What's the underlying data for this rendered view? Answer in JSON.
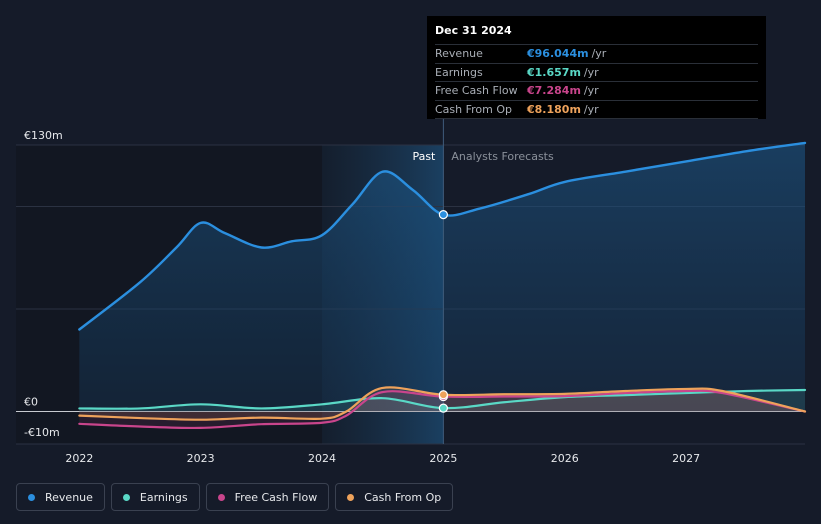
{
  "chart_data": {
    "type": "line",
    "title": "",
    "xlabel": "",
    "ylabel": "",
    "y_unit": "€",
    "ylim": [
      -10,
      130
    ],
    "y_ticks": [
      {
        "value": 130,
        "label": "€130m"
      },
      {
        "value": 0,
        "label": "€0"
      },
      {
        "value": -10,
        "label": "-€10m"
      }
    ],
    "x_ticks": [
      {
        "value": 2022,
        "label": "2022"
      },
      {
        "value": 2023,
        "label": "2023"
      },
      {
        "value": 2024,
        "label": "2024"
      },
      {
        "value": 2025,
        "label": "2025"
      },
      {
        "value": 2026,
        "label": "2026"
      },
      {
        "value": 2027,
        "label": "2027"
      }
    ],
    "xlim": [
      2021.75,
      2027.98
    ],
    "divider_x": 2025.0,
    "past_label": "Past",
    "forecast_label": "Analysts Forecasts",
    "series": [
      {
        "name": "Revenue",
        "color": "#2b8fdf",
        "fill": true,
        "points": [
          [
            2022.0,
            40
          ],
          [
            2022.5,
            63
          ],
          [
            2022.8,
            80
          ],
          [
            2023.0,
            92
          ],
          [
            2023.2,
            87
          ],
          [
            2023.5,
            80
          ],
          [
            2023.75,
            83
          ],
          [
            2024.0,
            86
          ],
          [
            2024.25,
            101
          ],
          [
            2024.5,
            117
          ],
          [
            2024.75,
            108
          ],
          [
            2025.0,
            96
          ],
          [
            2025.3,
            99
          ],
          [
            2025.7,
            106
          ],
          [
            2026.0,
            112
          ],
          [
            2026.5,
            117
          ],
          [
            2027.0,
            122
          ],
          [
            2027.5,
            127
          ],
          [
            2027.98,
            131
          ]
        ],
        "highlight": {
          "x": 2025.0,
          "y": 96.044
        }
      },
      {
        "name": "Earnings",
        "color": "#5ad8c6",
        "fill": false,
        "points": [
          [
            2022.0,
            1.5
          ],
          [
            2022.5,
            1.5
          ],
          [
            2023.0,
            3.5
          ],
          [
            2023.5,
            1.5
          ],
          [
            2024.0,
            3.5
          ],
          [
            2024.5,
            6.5
          ],
          [
            2025.0,
            1.66
          ],
          [
            2025.5,
            4.5
          ],
          [
            2026.0,
            7.0
          ],
          [
            2026.5,
            8.0
          ],
          [
            2027.0,
            9.0
          ],
          [
            2027.5,
            10.0
          ],
          [
            2027.98,
            10.5
          ]
        ],
        "highlight": {
          "x": 2025.0,
          "y": 1.657
        }
      },
      {
        "name": "Free Cash Flow",
        "color": "#c9458c",
        "fill": false,
        "points": [
          [
            2022.0,
            -6
          ],
          [
            2022.5,
            -7.3
          ],
          [
            2023.0,
            -8
          ],
          [
            2023.5,
            -6.2
          ],
          [
            2024.0,
            -5.5
          ],
          [
            2024.2,
            -2
          ],
          [
            2024.5,
            9.5
          ],
          [
            2025.0,
            7.28
          ],
          [
            2025.5,
            7.3
          ],
          [
            2026.0,
            7.5
          ],
          [
            2026.5,
            9
          ],
          [
            2027.0,
            10
          ],
          [
            2027.3,
            9
          ],
          [
            2027.98,
            0
          ]
        ],
        "highlight": {
          "x": 2025.0,
          "y": 7.284
        }
      },
      {
        "name": "Cash From Op",
        "color": "#eea25b",
        "fill": false,
        "points": [
          [
            2022.0,
            -2
          ],
          [
            2022.5,
            -3.2
          ],
          [
            2023.0,
            -4
          ],
          [
            2023.5,
            -3
          ],
          [
            2024.0,
            -3.5
          ],
          [
            2024.2,
            0
          ],
          [
            2024.5,
            11.5
          ],
          [
            2025.0,
            8.18
          ],
          [
            2025.5,
            8.4
          ],
          [
            2026.0,
            8.6
          ],
          [
            2026.5,
            10
          ],
          [
            2027.0,
            11
          ],
          [
            2027.3,
            10
          ],
          [
            2027.98,
            0
          ]
        ],
        "highlight": {
          "x": 2025.0,
          "y": 8.18
        }
      }
    ]
  },
  "tooltip": {
    "date": "Dec 31 2024",
    "rows": [
      {
        "name": "Revenue",
        "value": "€96.044m",
        "unit": "/yr",
        "color": "#2b8fdf"
      },
      {
        "name": "Earnings",
        "value": "€1.657m",
        "unit": "/yr",
        "color": "#5ad8c6"
      },
      {
        "name": "Free Cash Flow",
        "value": "€7.284m",
        "unit": "/yr",
        "color": "#c9458c"
      },
      {
        "name": "Cash From Op",
        "value": "€8.180m",
        "unit": "/yr",
        "color": "#eea25b"
      }
    ]
  },
  "legend": [
    {
      "label": "Revenue",
      "color": "#2b8fdf"
    },
    {
      "label": "Earnings",
      "color": "#5ad8c6"
    },
    {
      "label": "Free Cash Flow",
      "color": "#c9458c"
    },
    {
      "label": "Cash From Op",
      "color": "#eea25b"
    }
  ]
}
